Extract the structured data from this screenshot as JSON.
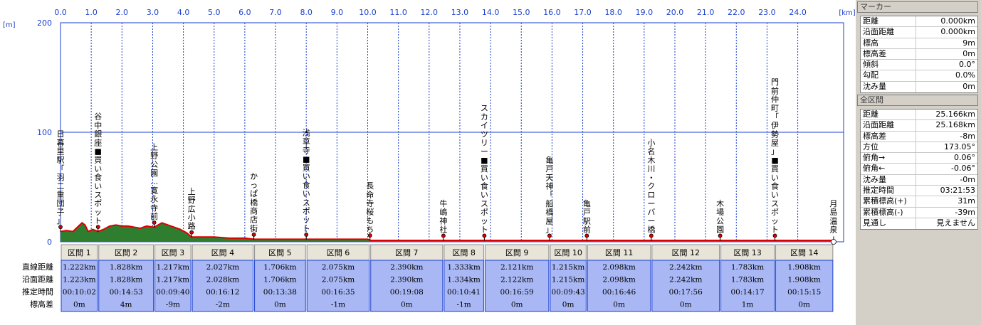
{
  "chart_data": {
    "type": "area",
    "x_unit_label": "[km]",
    "y_unit_label": "[m]",
    "x_ticks": [
      "0.0",
      "1.0",
      "2.0",
      "3.0",
      "4.0",
      "5.0",
      "6.0",
      "7.0",
      "8.0",
      "9.0",
      "10.0",
      "11.0",
      "12.0",
      "13.0",
      "14.0",
      "15.0",
      "16.0",
      "17.0",
      "18.0",
      "19.0",
      "20.0",
      "21.0",
      "22.0",
      "23.0",
      "24.0"
    ],
    "y_ticks": [
      "200",
      "100",
      "0"
    ],
    "xlim": [
      -0.3,
      25.166
    ],
    "ylim": [
      0,
      200
    ],
    "grid": true,
    "profile": [
      {
        "x": 0.0,
        "y": 9
      },
      {
        "x": 0.2,
        "y": 10
      },
      {
        "x": 0.4,
        "y": 9
      },
      {
        "x": 0.55,
        "y": 13
      },
      {
        "x": 0.7,
        "y": 17
      },
      {
        "x": 0.8,
        "y": 15
      },
      {
        "x": 0.9,
        "y": 9
      },
      {
        "x": 1.05,
        "y": 11
      },
      {
        "x": 1.22,
        "y": 9
      },
      {
        "x": 1.4,
        "y": 11
      },
      {
        "x": 1.6,
        "y": 14
      },
      {
        "x": 1.8,
        "y": 15
      },
      {
        "x": 2.0,
        "y": 14
      },
      {
        "x": 2.2,
        "y": 14
      },
      {
        "x": 2.4,
        "y": 13
      },
      {
        "x": 2.6,
        "y": 12
      },
      {
        "x": 2.8,
        "y": 14
      },
      {
        "x": 3.05,
        "y": 13
      },
      {
        "x": 3.3,
        "y": 17
      },
      {
        "x": 3.6,
        "y": 14
      },
      {
        "x": 3.9,
        "y": 11
      },
      {
        "x": 4.1,
        "y": 8
      },
      {
        "x": 4.27,
        "y": 4
      },
      {
        "x": 4.6,
        "y": 4
      },
      {
        "x": 5.0,
        "y": 4
      },
      {
        "x": 5.5,
        "y": 3
      },
      {
        "x": 6.0,
        "y": 3
      },
      {
        "x": 6.3,
        "y": 2
      },
      {
        "x": 7.0,
        "y": 2
      },
      {
        "x": 8.0,
        "y": 2
      },
      {
        "x": 9.0,
        "y": 2
      },
      {
        "x": 10.0,
        "y": 2
      },
      {
        "x": 10.1,
        "y": 1
      },
      {
        "x": 11.0,
        "y": 1
      },
      {
        "x": 12.5,
        "y": 1
      },
      {
        "x": 13.5,
        "y": 1
      },
      {
        "x": 14.5,
        "y": 1
      },
      {
        "x": 15.5,
        "y": 1
      },
      {
        "x": 16.5,
        "y": 1
      },
      {
        "x": 17.0,
        "y": 1
      },
      {
        "x": 18.5,
        "y": 1
      },
      {
        "x": 20.0,
        "y": 1
      },
      {
        "x": 21.5,
        "y": 1
      },
      {
        "x": 23.0,
        "y": 1
      },
      {
        "x": 24.5,
        "y": 1
      },
      {
        "x": 25.166,
        "y": 1
      }
    ],
    "markers": [
      {
        "x": 0.0,
        "label": "日暮里駅「羽二重団子」"
      },
      {
        "x": 1.222,
        "label": "谷中銀座■買い食いスポット"
      },
      {
        "x": 3.05,
        "label": "上野公園…寛永寺前"
      },
      {
        "x": 4.267,
        "label": "上野広小路"
      },
      {
        "x": 6.294,
        "label": "かっぱ橋商店街"
      },
      {
        "x": 8.0,
        "label": "浅草寺■買い食いスポット"
      },
      {
        "x": 10.075,
        "label": "長命寺桜もち"
      },
      {
        "x": 12.465,
        "label": "牛嶋神社"
      },
      {
        "x": 13.798,
        "label": "スカイツリー■買い食いスポット"
      },
      {
        "x": 15.919,
        "label": "亀戸天神「船橋屋」"
      },
      {
        "x": 17.134,
        "label": "亀戸駅前"
      },
      {
        "x": 19.232,
        "label": "小名木川・クローバー橋"
      },
      {
        "x": 21.474,
        "label": "木場公園"
      },
      {
        "x": 23.257,
        "label": "門前仲町「伊勢屋」■買い食いスポット"
      },
      {
        "x": 25.166,
        "label": "月島温泉"
      }
    ],
    "segments": {
      "row_labels": [
        "直線距離",
        "沿面距離",
        "推定時間",
        "標高差"
      ],
      "items": [
        {
          "name": "区間 1",
          "straight": "1.222km",
          "surface": "1.223km",
          "time": "00:10:02",
          "diff": "0m"
        },
        {
          "name": "区間 2",
          "straight": "1.828km",
          "surface": "1.828km",
          "time": "00:14:53",
          "diff": "4m"
        },
        {
          "name": "区間 3",
          "straight": "1.217km",
          "surface": "1.217km",
          "time": "00:09:40",
          "diff": "-9m"
        },
        {
          "name": "区間 4",
          "straight": "2.027km",
          "surface": "2.028km",
          "time": "00:16:12",
          "diff": "-2m"
        },
        {
          "name": "区間 5",
          "straight": "1.706km",
          "surface": "1.706km",
          "time": "00:13:38",
          "diff": "0m"
        },
        {
          "name": "区間 6",
          "straight": "2.075km",
          "surface": "2.075km",
          "time": "00:16:35",
          "diff": "-1m"
        },
        {
          "name": "区間 7",
          "straight": "2.390km",
          "surface": "2.390km",
          "time": "00:19:08",
          "diff": "0m"
        },
        {
          "name": "区間 8",
          "straight": "1.333km",
          "surface": "1.334km",
          "time": "00:10:41",
          "diff": "-1m"
        },
        {
          "name": "区間 9",
          "straight": "2.121km",
          "surface": "2.122km",
          "time": "00:16:59",
          "diff": "0m"
        },
        {
          "name": "区間 10",
          "straight": "1.215km",
          "surface": "1.215km",
          "time": "00:09:43",
          "diff": "0m"
        },
        {
          "name": "区間 11",
          "straight": "2.098km",
          "surface": "2.098km",
          "time": "00:16:46",
          "diff": "0m"
        },
        {
          "name": "区間 12",
          "straight": "2.242km",
          "surface": "2.242km",
          "time": "00:17:56",
          "diff": "0m"
        },
        {
          "name": "区間 13",
          "straight": "1.783km",
          "surface": "1.783km",
          "time": "00:14:17",
          "diff": "1m"
        },
        {
          "name": "区間 14",
          "straight": "1.908km",
          "surface": "1.908km",
          "time": "00:15:15",
          "diff": "0m"
        }
      ]
    }
  },
  "colors": {
    "axis_blue": "#1a3fd0",
    "terrain_green": "#2f7d2f",
    "route_red": "#dd0000",
    "segment_header": "#e8e4d8",
    "segment_body": "#a9b8f5"
  },
  "marker_panel": {
    "title": "マーカー",
    "rows": [
      {
        "label": "距離",
        "value": "0.000km"
      },
      {
        "label": "沿面距離",
        "value": "0.000km"
      },
      {
        "label": "標高",
        "value": "9m"
      },
      {
        "label": "標高差",
        "value": "0m"
      },
      {
        "label": "傾斜",
        "value": "0.0°"
      },
      {
        "label": "勾配",
        "value": "0.0%"
      },
      {
        "label": "沈み量",
        "value": "0m"
      }
    ]
  },
  "total_panel": {
    "title": "全区間",
    "rows": [
      {
        "label": "距離",
        "value": "25.166km"
      },
      {
        "label": "沿面距離",
        "value": "25.168km"
      },
      {
        "label": "標高差",
        "value": "-8m"
      },
      {
        "label": "方位",
        "value": "173.05°"
      },
      {
        "label": "俯角→",
        "value": "0.06°"
      },
      {
        "label": "俯角←",
        "value": "-0.06°"
      },
      {
        "label": "沈み量",
        "value": "-0m"
      },
      {
        "label": "推定時間",
        "value": "03:21:53"
      },
      {
        "label": "累積標高(+)",
        "value": "31m"
      },
      {
        "label": "累積標高(-)",
        "value": "-39m"
      },
      {
        "label": "見通し",
        "value": "見えません"
      }
    ]
  }
}
